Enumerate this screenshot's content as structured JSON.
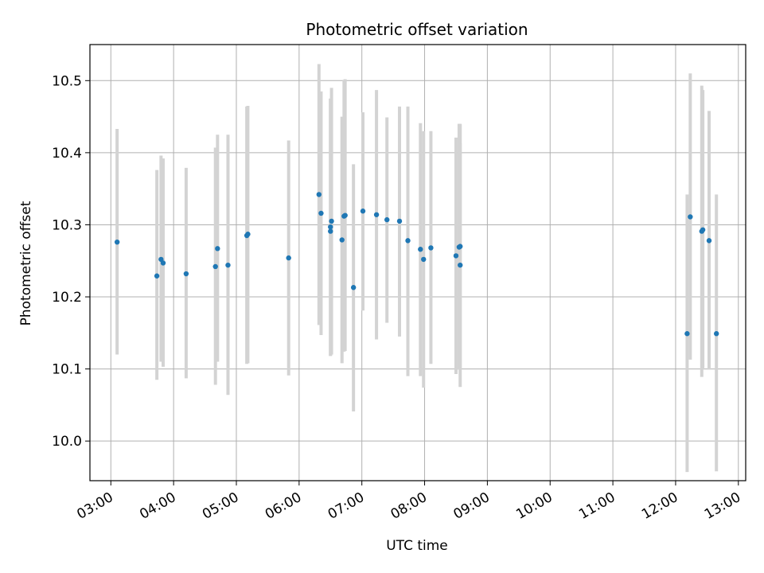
{
  "chart_data": {
    "type": "scatter",
    "title": "Photometric offset variation",
    "xlabel": "UTC time",
    "ylabel": "Photometric offset",
    "grid": true,
    "xlim": [
      "02:40",
      "13:07"
    ],
    "ylim": [
      9.945,
      10.55
    ],
    "x_ticks": [
      "03:00",
      "04:00",
      "05:00",
      "06:00",
      "07:00",
      "08:00",
      "09:00",
      "10:00",
      "11:00",
      "12:00",
      "13:00"
    ],
    "y_ticks": [
      10.0,
      10.1,
      10.2,
      10.3,
      10.4,
      10.5
    ],
    "colors": {
      "point": "#1f77b4",
      "errorbar": "#d3d3d3",
      "grid": "#b0b0b0"
    },
    "points": [
      {
        "x": "03:06",
        "y": 10.276,
        "err_low": 10.12,
        "err_high": 10.433
      },
      {
        "x": "03:44",
        "y": 10.229,
        "err_low": 10.085,
        "err_high": 10.376
      },
      {
        "x": "03:48",
        "y": 10.252,
        "err_low": 10.11,
        "err_high": 10.396
      },
      {
        "x": "03:50",
        "y": 10.247,
        "err_low": 10.103,
        "err_high": 10.392
      },
      {
        "x": "04:12",
        "y": 10.232,
        "err_low": 10.087,
        "err_high": 10.379
      },
      {
        "x": "04:40",
        "y": 10.242,
        "err_low": 10.078,
        "err_high": 10.407
      },
      {
        "x": "04:42",
        "y": 10.267,
        "err_low": 10.11,
        "err_high": 10.425
      },
      {
        "x": "04:52",
        "y": 10.244,
        "err_low": 10.064,
        "err_high": 10.425
      },
      {
        "x": "05:10",
        "y": 10.285,
        "err_low": 10.107,
        "err_high": 10.464
      },
      {
        "x": "05:11",
        "y": 10.287,
        "err_low": 10.108,
        "err_high": 10.465
      },
      {
        "x": "05:50",
        "y": 10.254,
        "err_low": 10.091,
        "err_high": 10.417
      },
      {
        "x": "06:19",
        "y": 10.342,
        "err_low": 10.161,
        "err_high": 10.523
      },
      {
        "x": "06:21",
        "y": 10.316,
        "err_low": 10.147,
        "err_high": 10.485
      },
      {
        "x": "06:30",
        "y": 10.291,
        "err_low": 10.118,
        "err_high": 10.475
      },
      {
        "x": "06:30",
        "y": 10.297,
        "err_low": 10.118,
        "err_high": 10.475
      },
      {
        "x": "06:31",
        "y": 10.305,
        "err_low": 10.12,
        "err_high": 10.49
      },
      {
        "x": "06:41",
        "y": 10.279,
        "err_low": 10.108,
        "err_high": 10.45
      },
      {
        "x": "06:43",
        "y": 10.312,
        "err_low": 10.124,
        "err_high": 10.501
      },
      {
        "x": "06:44",
        "y": 10.313,
        "err_low": 10.125,
        "err_high": 10.502
      },
      {
        "x": "06:52",
        "y": 10.213,
        "err_low": 10.041,
        "err_high": 10.384
      },
      {
        "x": "07:01",
        "y": 10.319,
        "err_low": 10.181,
        "err_high": 10.456
      },
      {
        "x": "07:14",
        "y": 10.314,
        "err_low": 10.141,
        "err_high": 10.487
      },
      {
        "x": "07:24",
        "y": 10.307,
        "err_low": 10.164,
        "err_high": 10.449
      },
      {
        "x": "07:36",
        "y": 10.305,
        "err_low": 10.145,
        "err_high": 10.464
      },
      {
        "x": "07:44",
        "y": 10.278,
        "err_low": 10.09,
        "err_high": 10.464
      },
      {
        "x": "07:56",
        "y": 10.266,
        "err_low": 10.09,
        "err_high": 10.441
      },
      {
        "x": "07:59",
        "y": 10.252,
        "err_low": 10.074,
        "err_high": 10.43
      },
      {
        "x": "08:06",
        "y": 10.268,
        "err_low": 10.107,
        "err_high": 10.43
      },
      {
        "x": "08:30",
        "y": 10.257,
        "err_low": 10.093,
        "err_high": 10.421
      },
      {
        "x": "08:33",
        "y": 10.269,
        "err_low": 10.099,
        "err_high": 10.44
      },
      {
        "x": "08:34",
        "y": 10.27,
        "err_low": 10.1,
        "err_high": 10.44
      },
      {
        "x": "08:34",
        "y": 10.244,
        "err_low": 10.075,
        "err_high": 10.413
      },
      {
        "x": "12:11",
        "y": 10.149,
        "err_low": 9.957,
        "err_high": 10.342
      },
      {
        "x": "12:14",
        "y": 10.311,
        "err_low": 10.113,
        "err_high": 10.51
      },
      {
        "x": "12:25",
        "y": 10.291,
        "err_low": 10.089,
        "err_high": 10.493
      },
      {
        "x": "12:26",
        "y": 10.293,
        "err_low": 10.099,
        "err_high": 10.487
      },
      {
        "x": "12:32",
        "y": 10.278,
        "err_low": 10.099,
        "err_high": 10.458
      },
      {
        "x": "12:39",
        "y": 10.149,
        "err_low": 9.958,
        "err_high": 10.342
      }
    ]
  }
}
